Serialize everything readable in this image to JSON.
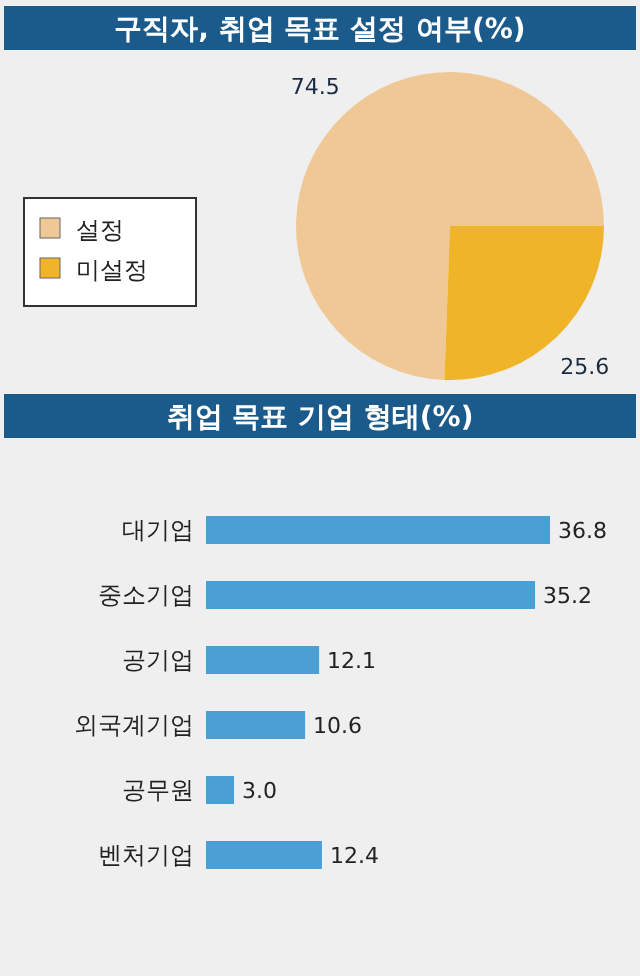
{
  "chart_data": [
    {
      "type": "pie",
      "title": "구직자, 취업 목표 설정 여부(%)",
      "categories": [
        "설정",
        "미설정"
      ],
      "values": [
        74.5,
        25.6
      ],
      "colors": [
        "#f0c896",
        "#f0b428"
      ],
      "data_labels": true,
      "legend": "left"
    },
    {
      "type": "bar",
      "orientation": "horizontal",
      "title": "취업 목표 기업 형태(%)",
      "categories": [
        "대기업",
        "중소기업",
        "공기업",
        "외국계기업",
        "공무원",
        "벤처기업"
      ],
      "values": [
        36.8,
        35.2,
        12.1,
        10.6,
        3.0,
        12.4
      ],
      "value_labels": [
        "36.8",
        "35.2",
        "12.1",
        "10.6",
        "3.0",
        "12.4"
      ],
      "color": "#4a9fd4"
    }
  ]
}
